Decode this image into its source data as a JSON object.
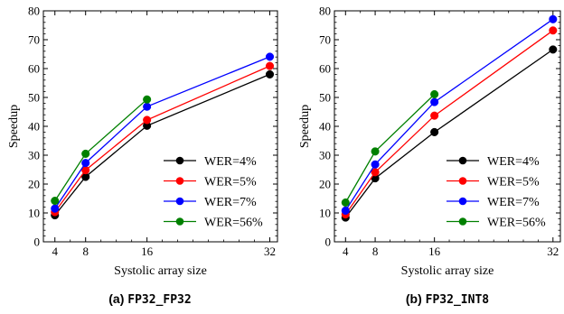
{
  "chart_data": [
    {
      "type": "line",
      "caption_label": "(a)",
      "caption_code": "FP32_FP32",
      "xlabel": "Systolic array size",
      "ylabel": "Speedup",
      "x": [
        4,
        8,
        16,
        32
      ],
      "x_ticks": [
        4,
        8,
        16,
        32
      ],
      "xlim": [
        2.5,
        33
      ],
      "ylim": [
        0,
        80
      ],
      "y_ticks": [
        0,
        10,
        20,
        30,
        40,
        50,
        60,
        70,
        80
      ],
      "legend_position": "lower-right",
      "grid": false,
      "series": [
        {
          "name": "WER=4%",
          "color": "#000000",
          "values": [
            9.2,
            22.5,
            40.2,
            58.0
          ]
        },
        {
          "name": "WER=5%",
          "color": "#ff0000",
          "values": [
            10.3,
            24.8,
            42.2,
            60.9
          ]
        },
        {
          "name": "WER=7%",
          "color": "#0000ff",
          "values": [
            11.5,
            27.3,
            46.8,
            64.1
          ]
        },
        {
          "name": "WER=56%",
          "color": "#008000",
          "values": [
            14.2,
            30.5,
            49.3,
            null
          ]
        }
      ]
    },
    {
      "type": "line",
      "caption_label": "(b)",
      "caption_code": "FP32_INT8",
      "xlabel": "Systolic array size",
      "ylabel": "Speedup",
      "x": [
        4,
        8,
        16,
        32
      ],
      "x_ticks": [
        4,
        8,
        16,
        32
      ],
      "xlim": [
        2.5,
        33
      ],
      "ylim": [
        0,
        80
      ],
      "y_ticks": [
        0,
        10,
        20,
        30,
        40,
        50,
        60,
        70,
        80
      ],
      "legend_position": "lower-right",
      "grid": false,
      "series": [
        {
          "name": "WER=4%",
          "color": "#000000",
          "values": [
            8.4,
            22.0,
            38.0,
            66.6
          ]
        },
        {
          "name": "WER=5%",
          "color": "#ff0000",
          "values": [
            9.5,
            24.1,
            43.7,
            73.2
          ]
        },
        {
          "name": "WER=7%",
          "color": "#0000ff",
          "values": [
            10.8,
            26.8,
            48.4,
            77.1
          ]
        },
        {
          "name": "WER=56%",
          "color": "#008000",
          "values": [
            13.6,
            31.3,
            51.1,
            null
          ]
        }
      ]
    }
  ]
}
